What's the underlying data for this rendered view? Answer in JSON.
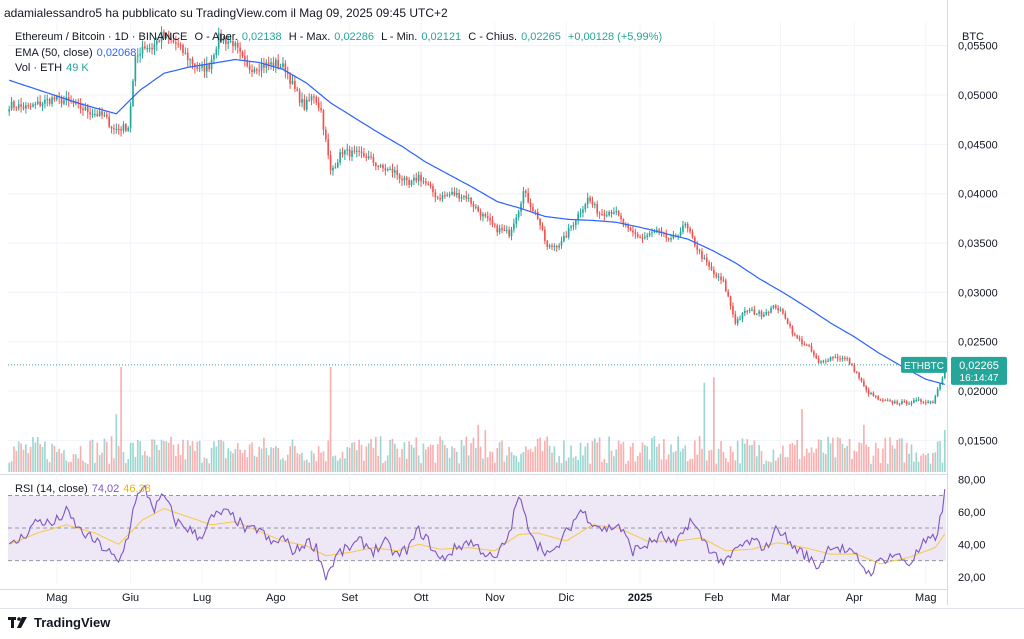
{
  "header": {
    "text": "adamialessandro5 ha pubblicato su TradingView.com il Mag 09, 2025 09:45 UTC+2"
  },
  "legend": {
    "symbol": "Ethereum / Bitcoin · 1D · BINANCE",
    "o_label": "O - Aper.",
    "o_value": "0,02138",
    "h_label": "H - Max.",
    "h_value": "0,02286",
    "l_label": "L - Min.",
    "l_value": "0,02121",
    "c_label": "C - Chius.",
    "c_value": "0,02265",
    "change": "+0,00128 (+5,99%)",
    "ema_label": "EMA (50, close)",
    "ema_value": "0,02068",
    "vol_label": "Vol · ETH",
    "vol_value": "49 K",
    "rsi_label": "RSI (14, close)",
    "rsi_value": "74,02",
    "rsi_ma_value": "46,38"
  },
  "currency": "BTC",
  "price_badge": {
    "symbol": "ETHBTC",
    "price": "0,02265",
    "countdown": "16:14:47"
  },
  "footer": {
    "brand": "TradingView"
  },
  "colors": {
    "up": "#26a69a",
    "down": "#ef5350",
    "ema": "#2962ff",
    "rsi": "#7e57c2",
    "rsi_ma": "#f7c948",
    "rsi_band": "#ede7f6"
  },
  "chart_data": {
    "type": "candlestick",
    "title": "Ethereum / Bitcoin · 1D · BINANCE",
    "price_ticks": [
      "0,05500",
      "0,05000",
      "0,04500",
      "0,04000",
      "0,03500",
      "0,03000",
      "0,02500",
      "0,02000",
      "0,01500"
    ],
    "price_tick_values": [
      0.055,
      0.05,
      0.045,
      0.04,
      0.035,
      0.03,
      0.025,
      0.02,
      0.015
    ],
    "price_range": [
      0.0118,
      0.0574
    ],
    "rsi_ticks": [
      "80,00",
      "60,00",
      "40,00",
      "20,00"
    ],
    "rsi_tick_values": [
      80,
      60,
      40,
      20
    ],
    "rsi_range": [
      15,
      82
    ],
    "rsi_levels": [
      70,
      50,
      30
    ],
    "month_labels": [
      "Mag",
      "Giu",
      "Lug",
      "Ago",
      "Set",
      "Ott",
      "Nov",
      "Dic",
      "2025",
      "Feb",
      "Mar",
      "Apr",
      "Mag"
    ],
    "month_day_index": [
      20,
      51,
      81,
      112,
      143,
      173,
      204,
      234,
      265,
      296,
      324,
      355,
      385
    ],
    "days": 394,
    "close_series": [
      [
        0,
        0.049
      ],
      [
        8,
        0.0487
      ],
      [
        18,
        0.0496
      ],
      [
        24,
        0.0494
      ],
      [
        33,
        0.0484
      ],
      [
        40,
        0.0478
      ],
      [
        44,
        0.0465
      ],
      [
        50,
        0.0468
      ],
      [
        53,
        0.0535
      ],
      [
        56,
        0.055
      ],
      [
        60,
        0.0548
      ],
      [
        64,
        0.056
      ],
      [
        70,
        0.0552
      ],
      [
        75,
        0.0538
      ],
      [
        80,
        0.0525
      ],
      [
        84,
        0.053
      ],
      [
        88,
        0.0558
      ],
      [
        94,
        0.0553
      ],
      [
        100,
        0.0527
      ],
      [
        106,
        0.053
      ],
      [
        112,
        0.0532
      ],
      [
        116,
        0.0527
      ],
      [
        120,
        0.0505
      ],
      [
        124,
        0.0488
      ],
      [
        128,
        0.05
      ],
      [
        131,
        0.0484
      ],
      [
        135,
        0.0422
      ],
      [
        140,
        0.0443
      ],
      [
        145,
        0.044
      ],
      [
        150,
        0.0438
      ],
      [
        156,
        0.0426
      ],
      [
        162,
        0.0422
      ],
      [
        168,
        0.0408
      ],
      [
        172,
        0.0418
      ],
      [
        175,
        0.041
      ],
      [
        180,
        0.0396
      ],
      [
        186,
        0.04
      ],
      [
        192,
        0.0397
      ],
      [
        198,
        0.038
      ],
      [
        204,
        0.0365
      ],
      [
        210,
        0.036
      ],
      [
        214,
        0.0385
      ],
      [
        216,
        0.0402
      ],
      [
        222,
        0.0376
      ],
      [
        226,
        0.0345
      ],
      [
        232,
        0.035
      ],
      [
        238,
        0.0375
      ],
      [
        243,
        0.0395
      ],
      [
        248,
        0.038
      ],
      [
        254,
        0.0383
      ],
      [
        260,
        0.0362
      ],
      [
        266,
        0.0355
      ],
      [
        272,
        0.0362
      ],
      [
        278,
        0.0352
      ],
      [
        284,
        0.0368
      ],
      [
        290,
        0.034
      ],
      [
        296,
        0.0318
      ],
      [
        300,
        0.031
      ],
      [
        302,
        0.0295
      ],
      [
        305,
        0.027
      ],
      [
        310,
        0.0282
      ],
      [
        316,
        0.0278
      ],
      [
        322,
        0.0286
      ],
      [
        326,
        0.0275
      ],
      [
        330,
        0.0255
      ],
      [
        336,
        0.0244
      ],
      [
        340,
        0.0228
      ],
      [
        346,
        0.0235
      ],
      [
        352,
        0.0232
      ],
      [
        356,
        0.0218
      ],
      [
        360,
        0.02
      ],
      [
        366,
        0.019
      ],
      [
        370,
        0.0189
      ],
      [
        376,
        0.0188
      ],
      [
        382,
        0.019
      ],
      [
        388,
        0.0189
      ],
      [
        392,
        0.0215
      ],
      [
        393,
        0.02265
      ]
    ],
    "ema_series": [
      [
        0,
        0.0515
      ],
      [
        15,
        0.0503
      ],
      [
        30,
        0.0491
      ],
      [
        45,
        0.0481
      ],
      [
        55,
        0.0505
      ],
      [
        65,
        0.0522
      ],
      [
        75,
        0.0528
      ],
      [
        85,
        0.0532
      ],
      [
        95,
        0.0536
      ],
      [
        105,
        0.0533
      ],
      [
        115,
        0.0526
      ],
      [
        125,
        0.0512
      ],
      [
        135,
        0.0492
      ],
      [
        145,
        0.0477
      ],
      [
        155,
        0.0462
      ],
      [
        165,
        0.0448
      ],
      [
        175,
        0.0432
      ],
      [
        185,
        0.0419
      ],
      [
        195,
        0.0406
      ],
      [
        205,
        0.0392
      ],
      [
        215,
        0.0385
      ],
      [
        225,
        0.0377
      ],
      [
        235,
        0.0374
      ],
      [
        245,
        0.0373
      ],
      [
        255,
        0.0371
      ],
      [
        265,
        0.0366
      ],
      [
        275,
        0.036
      ],
      [
        285,
        0.0354
      ],
      [
        295,
        0.0343
      ],
      [
        305,
        0.033
      ],
      [
        315,
        0.0314
      ],
      [
        325,
        0.03
      ],
      [
        335,
        0.0285
      ],
      [
        345,
        0.0269
      ],
      [
        355,
        0.0255
      ],
      [
        365,
        0.0239
      ],
      [
        375,
        0.0225
      ],
      [
        385,
        0.0212
      ],
      [
        393,
        0.02068
      ]
    ],
    "rsi_series": [
      [
        0,
        38
      ],
      [
        6,
        45
      ],
      [
        12,
        55
      ],
      [
        18,
        52
      ],
      [
        24,
        60
      ],
      [
        30,
        48
      ],
      [
        36,
        42
      ],
      [
        42,
        35
      ],
      [
        46,
        28
      ],
      [
        50,
        46
      ],
      [
        53,
        68
      ],
      [
        57,
        74
      ],
      [
        61,
        62
      ],
      [
        65,
        70
      ],
      [
        70,
        54
      ],
      [
        75,
        50
      ],
      [
        80,
        44
      ],
      [
        85,
        56
      ],
      [
        90,
        60
      ],
      [
        95,
        56
      ],
      [
        100,
        48
      ],
      [
        105,
        50
      ],
      [
        110,
        40
      ],
      [
        115,
        44
      ],
      [
        120,
        35
      ],
      [
        125,
        42
      ],
      [
        129,
        38
      ],
      [
        133,
        20
      ],
      [
        138,
        34
      ],
      [
        143,
        38
      ],
      [
        148,
        42
      ],
      [
        153,
        36
      ],
      [
        158,
        41
      ],
      [
        163,
        33
      ],
      [
        168,
        38
      ],
      [
        172,
        49
      ],
      [
        176,
        42
      ],
      [
        181,
        30
      ],
      [
        187,
        37
      ],
      [
        193,
        42
      ],
      [
        198,
        37
      ],
      [
        204,
        30
      ],
      [
        210,
        46
      ],
      [
        214,
        70
      ],
      [
        217,
        55
      ],
      [
        222,
        40
      ],
      [
        228,
        33
      ],
      [
        234,
        47
      ],
      [
        240,
        61
      ],
      [
        245,
        54
      ],
      [
        250,
        49
      ],
      [
        256,
        52
      ],
      [
        262,
        36
      ],
      [
        268,
        40
      ],
      [
        274,
        45
      ],
      [
        280,
        39
      ],
      [
        286,
        55
      ],
      [
        291,
        44
      ],
      [
        296,
        34
      ],
      [
        301,
        28
      ],
      [
        306,
        38
      ],
      [
        312,
        42
      ],
      [
        318,
        38
      ],
      [
        323,
        51
      ],
      [
        328,
        40
      ],
      [
        334,
        34
      ],
      [
        340,
        26
      ],
      [
        345,
        40
      ],
      [
        350,
        37
      ],
      [
        356,
        32
      ],
      [
        361,
        22
      ],
      [
        366,
        30
      ],
      [
        372,
        34
      ],
      [
        378,
        28
      ],
      [
        384,
        40
      ],
      [
        389,
        44
      ],
      [
        392,
        60
      ],
      [
        393,
        74.02
      ]
    ],
    "rsi_ma_series": [
      [
        0,
        40
      ],
      [
        12,
        47
      ],
      [
        24,
        52
      ],
      [
        36,
        47
      ],
      [
        46,
        40
      ],
      [
        56,
        55
      ],
      [
        65,
        62
      ],
      [
        75,
        57
      ],
      [
        85,
        52
      ],
      [
        95,
        54
      ],
      [
        105,
        48
      ],
      [
        115,
        42
      ],
      [
        125,
        39
      ],
      [
        133,
        33
      ],
      [
        143,
        35
      ],
      [
        153,
        38
      ],
      [
        163,
        36
      ],
      [
        172,
        40
      ],
      [
        181,
        37
      ],
      [
        193,
        38
      ],
      [
        204,
        36
      ],
      [
        214,
        46
      ],
      [
        222,
        47
      ],
      [
        234,
        42
      ],
      [
        245,
        52
      ],
      [
        256,
        50
      ],
      [
        268,
        42
      ],
      [
        280,
        42
      ],
      [
        291,
        44
      ],
      [
        301,
        36
      ],
      [
        312,
        37
      ],
      [
        323,
        41
      ],
      [
        334,
        38
      ],
      [
        345,
        34
      ],
      [
        356,
        34
      ],
      [
        366,
        28
      ],
      [
        378,
        32
      ],
      [
        389,
        38
      ],
      [
        393,
        46.38
      ]
    ],
    "volume_spikes": [
      [
        45,
        0.55
      ],
      [
        47,
        1.0
      ],
      [
        135,
        1.0
      ],
      [
        197,
        0.45
      ],
      [
        200,
        0.4
      ],
      [
        292,
        0.85
      ],
      [
        296,
        0.9
      ],
      [
        333,
        0.6
      ],
      [
        359,
        0.45
      ],
      [
        393,
        0.4
      ]
    ]
  }
}
